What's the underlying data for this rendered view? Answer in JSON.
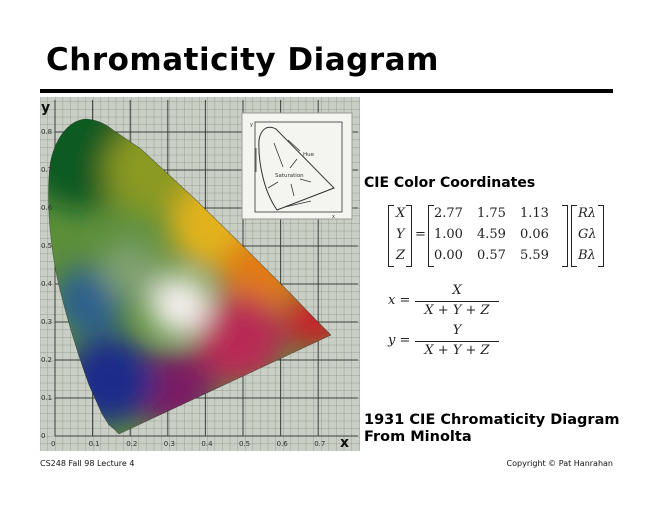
{
  "slide": {
    "title": "Chromaticity Diagram",
    "section_heading": "CIE Color Coordinates",
    "caption_line1": "1931 CIE Chromaticity Diagram",
    "caption_line2": "From Minolta",
    "footer_left": "CS248 Fall 98 Lecture 4",
    "footer_right": "Copyright © Pat Hanrahan"
  },
  "matrix": {
    "lhs": [
      "X",
      "Y",
      "Z"
    ],
    "rows": [
      [
        "2.77",
        "1.75",
        "1.13"
      ],
      [
        "1.00",
        "4.59",
        "0.06"
      ],
      [
        "0.00",
        "0.57",
        "5.59"
      ]
    ],
    "rhs": [
      "Rλ",
      "Gλ",
      "Bλ"
    ],
    "equals": "="
  },
  "formulas": [
    {
      "lhs": "x =",
      "num": "X",
      "den": "X + Y + Z"
    },
    {
      "lhs": "y =",
      "num": "Y",
      "den": "X + Y + Z"
    }
  ],
  "diagram": {
    "x_axis_label": "x",
    "y_axis_label": "y",
    "x_ticks": [
      "0",
      "0.1",
      "0.2",
      "0.3",
      "0.4",
      "0.5",
      "0.6",
      "0.7"
    ],
    "y_ticks": [
      "0",
      "0.1",
      "0.2",
      "0.3",
      "0.4",
      "0.5",
      "0.6",
      "0.7",
      "0.8"
    ],
    "inset": {
      "hue_label": "Hue",
      "saturation_label": "Saturation",
      "x_label": "x",
      "y_label": "y"
    },
    "colors": {
      "background": "#c9cfc4",
      "grid": "#5a5f58"
    }
  }
}
